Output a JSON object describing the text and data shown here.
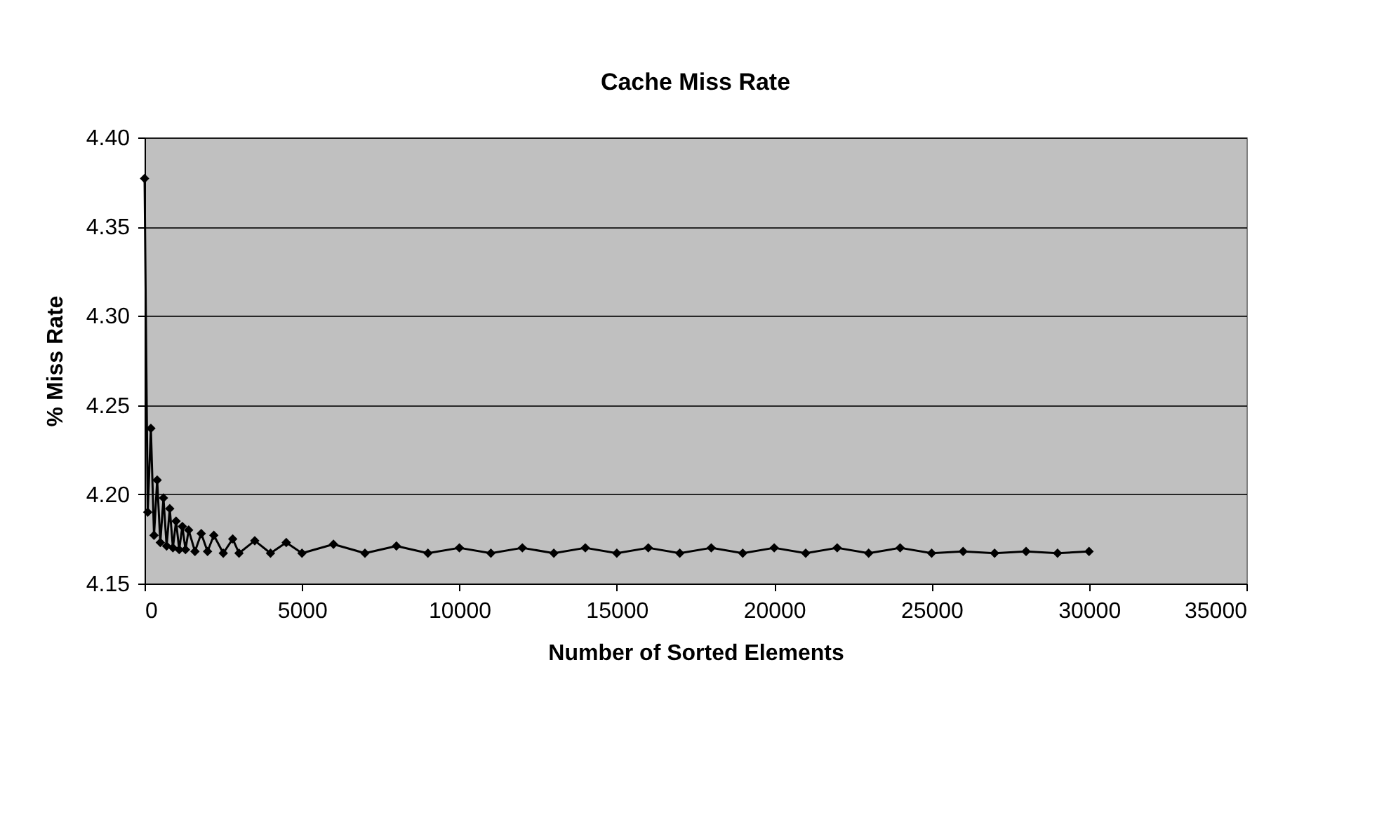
{
  "chart_data": {
    "type": "line",
    "title": "Cache Miss Rate",
    "xlabel": "Number of Sorted Elements",
    "ylabel": "% Miss Rate",
    "xlim": [
      0,
      35000
    ],
    "xticks": [
      0,
      5000,
      10000,
      15000,
      20000,
      25000,
      30000,
      35000
    ],
    "ylim": [
      4.15,
      4.4
    ],
    "yticks": [
      4.15,
      {
        "value": 4.2,
        "label": "4.20"
      },
      4.25,
      {
        "value": 4.3,
        "label": "4.30"
      },
      4.35,
      {
        "value": 4.4,
        "label": "4.40"
      }
    ],
    "grid": "y",
    "marker": "diamond",
    "line_style": "solid",
    "series": [
      {
        "color": "#000000",
        "x": [
          0,
          100,
          200,
          300,
          400,
          500,
          600,
          700,
          800,
          900,
          1000,
          1100,
          1200,
          1300,
          1400,
          1600,
          1800,
          2000,
          2200,
          2500,
          2800,
          3000,
          3500,
          4000,
          4500,
          5000,
          6000,
          7000,
          8000,
          9000,
          10000,
          11000,
          12000,
          13000,
          14000,
          15000,
          16000,
          17000,
          18000,
          19000,
          20000,
          21000,
          22000,
          23000,
          24000,
          25000,
          26000,
          27000,
          28000,
          29000,
          30000
        ],
        "values": [
          4.377,
          4.19,
          4.237,
          4.177,
          4.208,
          4.173,
          4.198,
          4.171,
          4.192,
          4.17,
          4.185,
          4.169,
          4.182,
          4.169,
          4.18,
          4.168,
          4.178,
          4.168,
          4.177,
          4.167,
          4.175,
          4.167,
          4.174,
          4.167,
          4.173,
          4.167,
          4.172,
          4.167,
          4.171,
          4.167,
          4.17,
          4.167,
          4.17,
          4.167,
          4.17,
          4.167,
          4.17,
          4.167,
          4.17,
          4.167,
          4.17,
          4.167,
          4.17,
          4.167,
          4.17,
          4.167,
          4.168,
          4.167,
          4.168,
          4.167,
          4.168
        ]
      }
    ]
  }
}
